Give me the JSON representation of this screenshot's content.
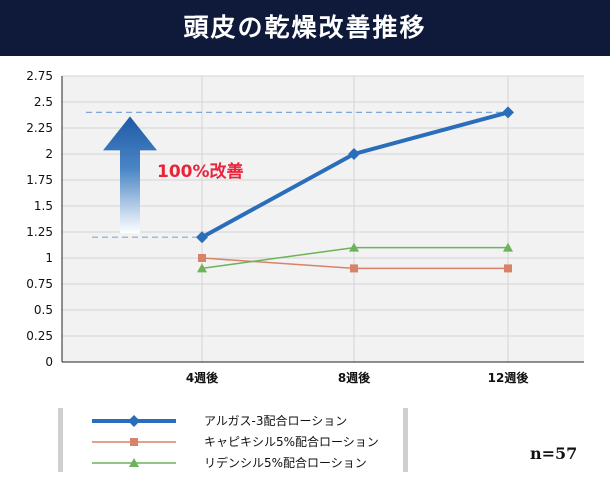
{
  "title": "頭皮の乾燥改善推移",
  "sample_size": "n=57",
  "annotation": "100%改善",
  "chart_data": {
    "type": "line",
    "title": "頭皮の乾燥改善推移",
    "categories": [
      "4週後",
      "8週後",
      "12週後"
    ],
    "y_ticks": [
      "0",
      "0.25",
      "0.5",
      "0.75",
      "1",
      "1.25",
      "1.5",
      "1.75",
      "2",
      "2.25",
      "2.5",
      "2.75"
    ],
    "ylim": [
      0,
      2.75
    ],
    "grid": true,
    "legend_position": "bottom",
    "series": [
      {
        "name": "アルガス-3配合ローション",
        "values": [
          1.2,
          2.0,
          2.4
        ],
        "color": "#2a6ebb",
        "marker": "diamond"
      },
      {
        "name": "キャピキシル5%配合ローション",
        "values": [
          1.0,
          0.9,
          0.9
        ],
        "color": "#d9826a",
        "marker": "square"
      },
      {
        "name": "リデンシル5%配合ローション",
        "values": [
          0.9,
          1.1,
          1.1
        ],
        "color": "#6cb35a",
        "marker": "triangle"
      }
    ],
    "reference_lines": [
      2.4,
      1.2
    ]
  }
}
